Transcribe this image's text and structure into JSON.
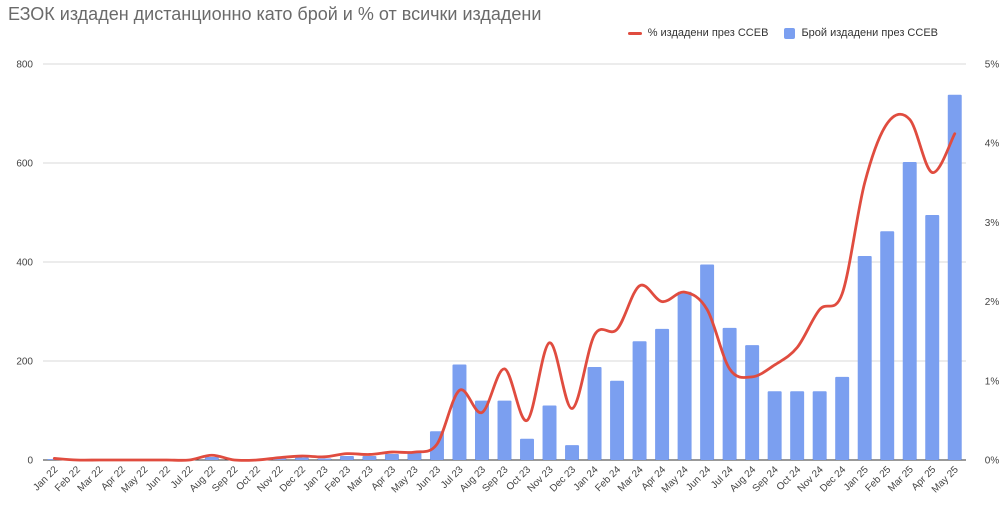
{
  "chart_data": {
    "type": "bar",
    "title": "ЕЗОК издаден дистанционно като брой и % от всички издадени",
    "categories": [
      "Jan 22",
      "Feb 22",
      "Mar 22",
      "Apr 22",
      "May 22",
      "Jun 22",
      "Jul 22",
      "Aug 22",
      "Sep 22",
      "Oct 22",
      "Nov 22",
      "Dec 22",
      "Jan 23",
      "Feb 23",
      "Mar 23",
      "Apr 23",
      "May 23",
      "Jun 23",
      "Jul 23",
      "Aug 23",
      "Sep 23",
      "Oct 23",
      "Nov 23",
      "Dec 23",
      "Jan 24",
      "Feb 24",
      "Mar 24",
      "Apr 24",
      "May 24",
      "Jun 24",
      "Jul 24",
      "Aug 24",
      "Sep 24",
      "Oct 24",
      "Nov 24",
      "Dec 24",
      "Jan 25",
      "Feb 25",
      "Mar 25",
      "Apr 25",
      "May 25"
    ],
    "series": [
      {
        "name": "Брой издадени през ССЕВ",
        "type": "bar",
        "axis": "left",
        "color": "#7b9ff0",
        "values": [
          2,
          1,
          1,
          1,
          1,
          1,
          2,
          6,
          2,
          2,
          4,
          5,
          3,
          8,
          8,
          12,
          15,
          58,
          193,
          120,
          120,
          43,
          110,
          30,
          188,
          160,
          240,
          265,
          340,
          395,
          267,
          232,
          139,
          139,
          139,
          168,
          412,
          462,
          602,
          495,
          738
        ]
      },
      {
        "name": "% издадени през ССЕВ",
        "type": "line",
        "axis": "right",
        "color": "#e04c3f",
        "values": [
          0.02,
          0.0,
          0.0,
          0.0,
          0.0,
          0.0,
          0.0,
          0.06,
          0.0,
          0.0,
          0.03,
          0.05,
          0.04,
          0.08,
          0.07,
          0.1,
          0.1,
          0.2,
          0.88,
          0.6,
          1.15,
          0.5,
          1.48,
          0.65,
          1.58,
          1.65,
          2.2,
          2.0,
          2.12,
          1.9,
          1.15,
          1.05,
          1.2,
          1.42,
          1.9,
          2.1,
          3.5,
          4.25,
          4.3,
          3.63,
          4.12
        ]
      }
    ],
    "ylim_left": [
      0,
      800
    ],
    "yticks_left": [
      "0",
      "200",
      "400",
      "600",
      "800"
    ],
    "ylim_right": [
      0,
      5
    ],
    "yticks_right": [
      "0%",
      "1%",
      "2%",
      "3%",
      "4%",
      "5%"
    ],
    "grid": true,
    "legend_position": "top-right"
  }
}
